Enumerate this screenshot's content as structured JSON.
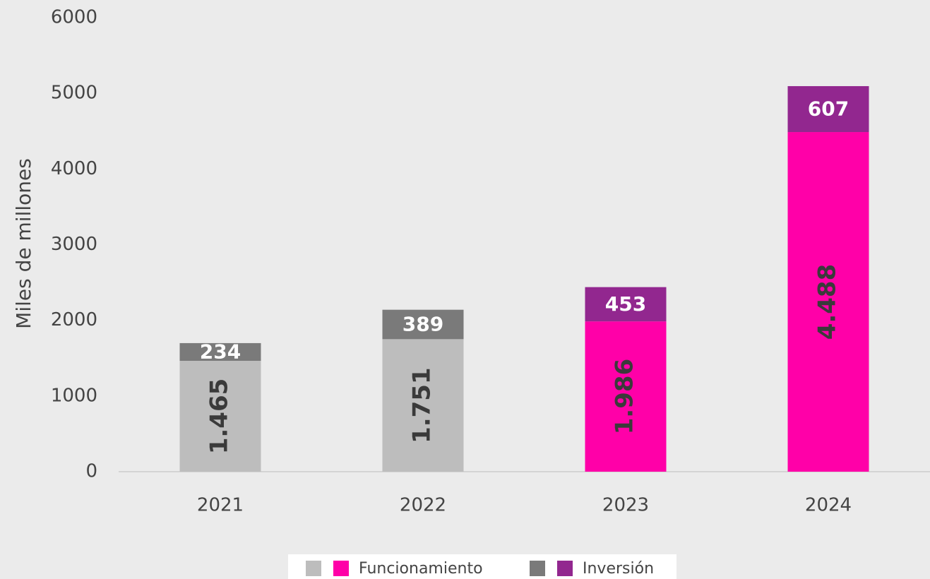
{
  "chart_data": {
    "type": "stacked_bar",
    "y_label": "Miles de millones",
    "categories": [
      "2021",
      "2022",
      "2023",
      "2024"
    ],
    "series": [
      {
        "name": "Funcionamiento",
        "colors": [
          "#bdbdbd",
          "#bdbdbd",
          "#ff00a8",
          "#ff00a8"
        ],
        "values": [
          1465,
          1751,
          1986,
          4488
        ],
        "value_labels": [
          "1.465",
          "1.751",
          "1.986",
          "4.488"
        ]
      },
      {
        "name": "Inversión",
        "colors": [
          "#7a7a7a",
          "#7a7a7a",
          "#92278f",
          "#92278f"
        ],
        "values": [
          234,
          389,
          453,
          607
        ]
      }
    ],
    "ylim": [
      0,
      6000
    ],
    "yticks": [
      0,
      1000,
      2000,
      3000,
      4000,
      5000,
      6000
    ],
    "grid": false
  }
}
